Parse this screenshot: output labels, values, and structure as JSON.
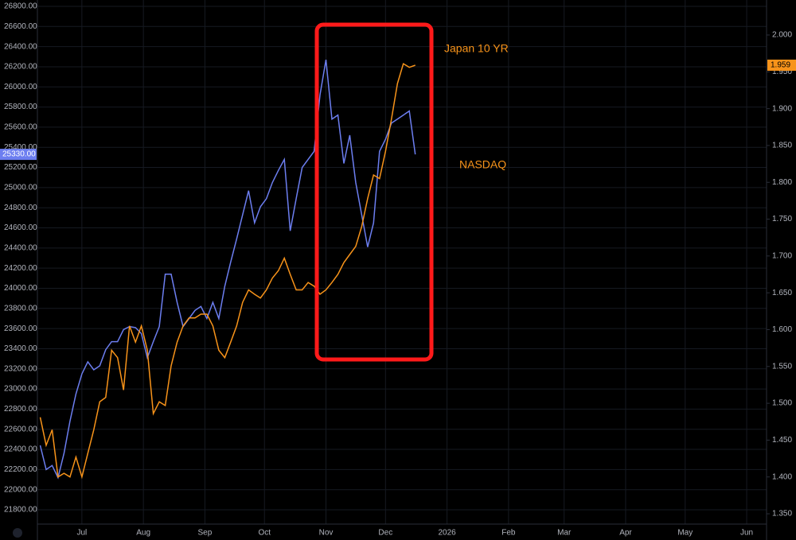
{
  "chart_data": {
    "type": "line",
    "x": [
      -21,
      -18,
      -15,
      -12,
      -9,
      -6,
      -3,
      0,
      3,
      6,
      9,
      12,
      15,
      18,
      21,
      24,
      27,
      30,
      33,
      36,
      39,
      42,
      45,
      48,
      51,
      54,
      57,
      60,
      63,
      66,
      69,
      72,
      75,
      78,
      81,
      84,
      87,
      90,
      93,
      96,
      99,
      102,
      105,
      108,
      111,
      114,
      117,
      120,
      123,
      126,
      129,
      132,
      135,
      138,
      141,
      144,
      147,
      150,
      153,
      156,
      159,
      162,
      165,
      168
    ],
    "xlim": [
      -22,
      345
    ],
    "xticks": [
      {
        "value": 0,
        "label": "Jul"
      },
      {
        "value": 31,
        "label": "Aug"
      },
      {
        "value": 62,
        "label": "Sep"
      },
      {
        "value": 92,
        "label": "Oct"
      },
      {
        "value": 123,
        "label": "Nov"
      },
      {
        "value": 153,
        "label": "Dec"
      },
      {
        "value": 184,
        "label": "2026"
      },
      {
        "value": 215,
        "label": "Feb"
      },
      {
        "value": 243,
        "label": "Mar"
      },
      {
        "value": 274,
        "label": "Apr"
      },
      {
        "value": 304,
        "label": "May"
      },
      {
        "value": 335,
        "label": "Jun"
      }
    ],
    "ylim": [
      21658,
      26863
    ],
    "yticks": [
      {
        "value": 21800,
        "label": "21800.00"
      },
      {
        "value": 22000,
        "label": "22000.00"
      },
      {
        "value": 22200,
        "label": "22200.00"
      },
      {
        "value": 22400,
        "label": "22400.00"
      },
      {
        "value": 22600,
        "label": "22600.00"
      },
      {
        "value": 22800,
        "label": "22800.00"
      },
      {
        "value": 23000,
        "label": "23000.00"
      },
      {
        "value": 23200,
        "label": "23200.00"
      },
      {
        "value": 23400,
        "label": "23400.00"
      },
      {
        "value": 23600,
        "label": "23600.00"
      },
      {
        "value": 23800,
        "label": "23800.00"
      },
      {
        "value": 24000,
        "label": "24000.00"
      },
      {
        "value": 24200,
        "label": "24200.00"
      },
      {
        "value": 24400,
        "label": "24400.00"
      },
      {
        "value": 24600,
        "label": "24600.00"
      },
      {
        "value": 24800,
        "label": "24800.00"
      },
      {
        "value": 25000,
        "label": "25000.00"
      },
      {
        "value": 25200,
        "label": "25200.00"
      },
      {
        "value": 25400,
        "label": "25400.00"
      },
      {
        "value": 25600,
        "label": "25600.00"
      },
      {
        "value": 25800,
        "label": "25800.00"
      },
      {
        "value": 26000,
        "label": "26000.00"
      },
      {
        "value": 26200,
        "label": "26200.00"
      },
      {
        "value": 26400,
        "label": "26400.00"
      },
      {
        "value": 26600,
        "label": "26600.00"
      },
      {
        "value": 26800,
        "label": "26800.00"
      }
    ],
    "y2lim": [
      1.336,
      2.0475
    ],
    "y2ticks": [
      {
        "value": 1.35,
        "label": "1.350"
      },
      {
        "value": 1.4,
        "label": "1.400"
      },
      {
        "value": 1.45,
        "label": "1.450"
      },
      {
        "value": 1.5,
        "label": "1.500"
      },
      {
        "value": 1.55,
        "label": "1.550"
      },
      {
        "value": 1.6,
        "label": "1.600"
      },
      {
        "value": 1.65,
        "label": "1.650"
      },
      {
        "value": 1.7,
        "label": "1.700"
      },
      {
        "value": 1.75,
        "label": "1.750"
      },
      {
        "value": 1.8,
        "label": "1.800"
      },
      {
        "value": 1.85,
        "label": "1.850"
      },
      {
        "value": 1.9,
        "label": "1.900"
      },
      {
        "value": 1.95,
        "label": "1.950"
      },
      {
        "value": 2.0,
        "label": "2.000"
      }
    ],
    "grid": true,
    "series": [
      {
        "color": "#6c7ef0",
        "price_label": "25330.00",
        "values": [
          22440,
          22200,
          22240,
          22120,
          22360,
          22680,
          22950,
          23150,
          23270,
          23190,
          23230,
          23390,
          23470,
          23470,
          23590,
          23620,
          23610,
          23550,
          23310,
          23470,
          23620,
          24140,
          24140,
          23860,
          23620,
          23700,
          23780,
          23820,
          23700,
          23860,
          23700,
          24020,
          24260,
          24490,
          24730,
          24970,
          24650,
          24810,
          24890,
          25050,
          25170,
          25280,
          24570,
          24890,
          25200,
          25280,
          25360,
          25920,
          26270,
          25680,
          25720,
          25240,
          25520,
          25050,
          24730,
          24410,
          24650,
          25360,
          25480,
          25640,
          25680,
          25720,
          25760,
          25330
        ]
      },
      {
        "color": "#f7931a",
        "axis": "y2",
        "price_label": "1.959",
        "values": [
          1.481,
          1.443,
          1.464,
          1.4,
          1.405,
          1.4,
          1.427,
          1.4,
          1.432,
          1.464,
          1.502,
          1.508,
          1.572,
          1.562,
          1.518,
          1.605,
          1.583,
          1.605,
          1.572,
          1.486,
          1.502,
          1.497,
          1.551,
          1.583,
          1.605,
          1.616,
          1.616,
          1.621,
          1.621,
          1.605,
          1.572,
          1.562,
          1.583,
          1.605,
          1.637,
          1.654,
          1.648,
          1.643,
          1.654,
          1.67,
          1.68,
          1.697,
          1.675,
          1.654,
          1.654,
          1.664,
          1.659,
          1.648,
          1.654,
          1.664,
          1.675,
          1.691,
          1.702,
          1.713,
          1.74,
          1.778,
          1.81,
          1.805,
          1.842,
          1.886,
          1.934,
          1.961,
          1.956,
          1.959
        ]
      }
    ],
    "annotations": [
      "Japan 10 YR",
      "NASDAQ"
    ]
  }
}
